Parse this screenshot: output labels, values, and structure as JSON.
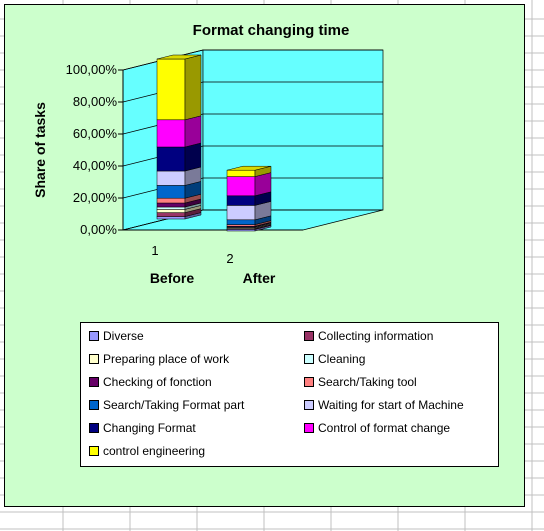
{
  "chart_data": {
    "type": "bar",
    "stacked": true,
    "three_d": true,
    "title": "Format changing time",
    "ylabel": "Share of tasks",
    "categories": [
      "1",
      "2"
    ],
    "category_labels": [
      "Before",
      "After"
    ],
    "y_ticks": [
      "0,00%",
      "20,00%",
      "40,00%",
      "60,00%",
      "80,00%",
      "100,00%"
    ],
    "ylim": [
      0,
      100
    ],
    "grid": true,
    "legend_position": "bottom",
    "series": [
      {
        "name": "Diverse",
        "color": "#9999ff",
        "values": [
          1.5,
          1.0
        ]
      },
      {
        "name": "Collecting information",
        "color": "#993366",
        "values": [
          2.5,
          0.5
        ]
      },
      {
        "name": "Preparing place of work",
        "color": "#ffffcc",
        "values": [
          2.0,
          0.5
        ]
      },
      {
        "name": "Cleaning",
        "color": "#ccffff",
        "values": [
          1.5,
          0.5
        ]
      },
      {
        "name": "Checking of fonction",
        "color": "#660066",
        "values": [
          2.5,
          0.5
        ]
      },
      {
        "name": "Search/Taking tool",
        "color": "#ff8080",
        "values": [
          3.0,
          1.0
        ]
      },
      {
        "name": "Search/Taking Format part",
        "color": "#0066cc",
        "values": [
          8.0,
          3.0
        ]
      },
      {
        "name": "Waiting for start of Machine",
        "color": "#ccccff",
        "values": [
          9.0,
          9.0
        ]
      },
      {
        "name": "Changing Format",
        "color": "#000080",
        "values": [
          15.0,
          6.0
        ]
      },
      {
        "name": "Control of format change",
        "color": "#ff00ff",
        "values": [
          17.0,
          12.0
        ]
      },
      {
        "name": "control engineering",
        "color": "#ffff00",
        "values": [
          38.0,
          4.0
        ]
      }
    ]
  },
  "colors": {
    "chart_area": "#ccffcc",
    "plot_wall": "#66ffff",
    "floor": "#66ffff",
    "sheet_grid": "#c0c0c0"
  }
}
